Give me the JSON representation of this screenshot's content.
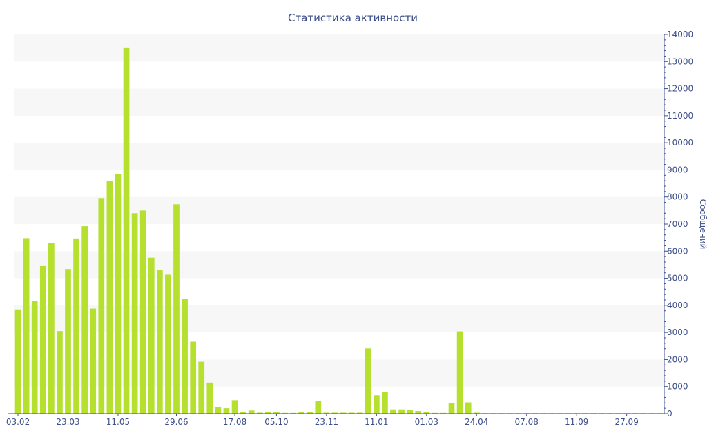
{
  "chart_data": {
    "type": "bar",
    "title": "Статистика активности",
    "ylabel": "Сообщений",
    "xlabel": "",
    "ylim": [
      0,
      14000
    ],
    "y_ticks": [
      0,
      1000,
      2000,
      3000,
      4000,
      5000,
      6000,
      7000,
      8000,
      9000,
      10000,
      11000,
      12000,
      13000,
      14000
    ],
    "y_axis_side": "right",
    "grid": "alternating horizontal bands",
    "bar_color": "#b5e02e",
    "text_color": "#3d4f8a",
    "band_color": "#f7f7f7",
    "x_tick_labels": [
      {
        "index": 0,
        "label": "03.02"
      },
      {
        "index": 6,
        "label": "23.03"
      },
      {
        "index": 12,
        "label": "11.05"
      },
      {
        "index": 19,
        "label": "29.06"
      },
      {
        "index": 26,
        "label": "17.08"
      },
      {
        "index": 31,
        "label": "05.10"
      },
      {
        "index": 37,
        "label": "23.11"
      },
      {
        "index": 43,
        "label": "11.01"
      },
      {
        "index": 49,
        "label": "01.03"
      },
      {
        "index": 55,
        "label": "24.04"
      },
      {
        "index": 61,
        "label": "07.08"
      },
      {
        "index": 67,
        "label": "11.09"
      },
      {
        "index": 73,
        "label": "27.09"
      }
    ],
    "values": [
      3850,
      6480,
      4170,
      5450,
      6300,
      3050,
      5340,
      6470,
      6920,
      3880,
      7960,
      8600,
      8850,
      13520,
      7400,
      7500,
      5760,
      5300,
      5130,
      7730,
      4240,
      2660,
      1920,
      1150,
      250,
      200,
      500,
      70,
      120,
      40,
      60,
      60,
      30,
      30,
      60,
      60,
      460,
      40,
      40,
      40,
      40,
      40,
      2410,
      680,
      810,
      160,
      160,
      150,
      100,
      60,
      30,
      30,
      400,
      3040,
      420,
      40,
      20,
      20,
      20,
      20,
      20,
      20,
      20,
      20,
      20,
      20,
      20,
      20,
      20,
      20,
      20,
      20,
      20,
      20,
      20,
      20,
      20,
      20
    ]
  }
}
